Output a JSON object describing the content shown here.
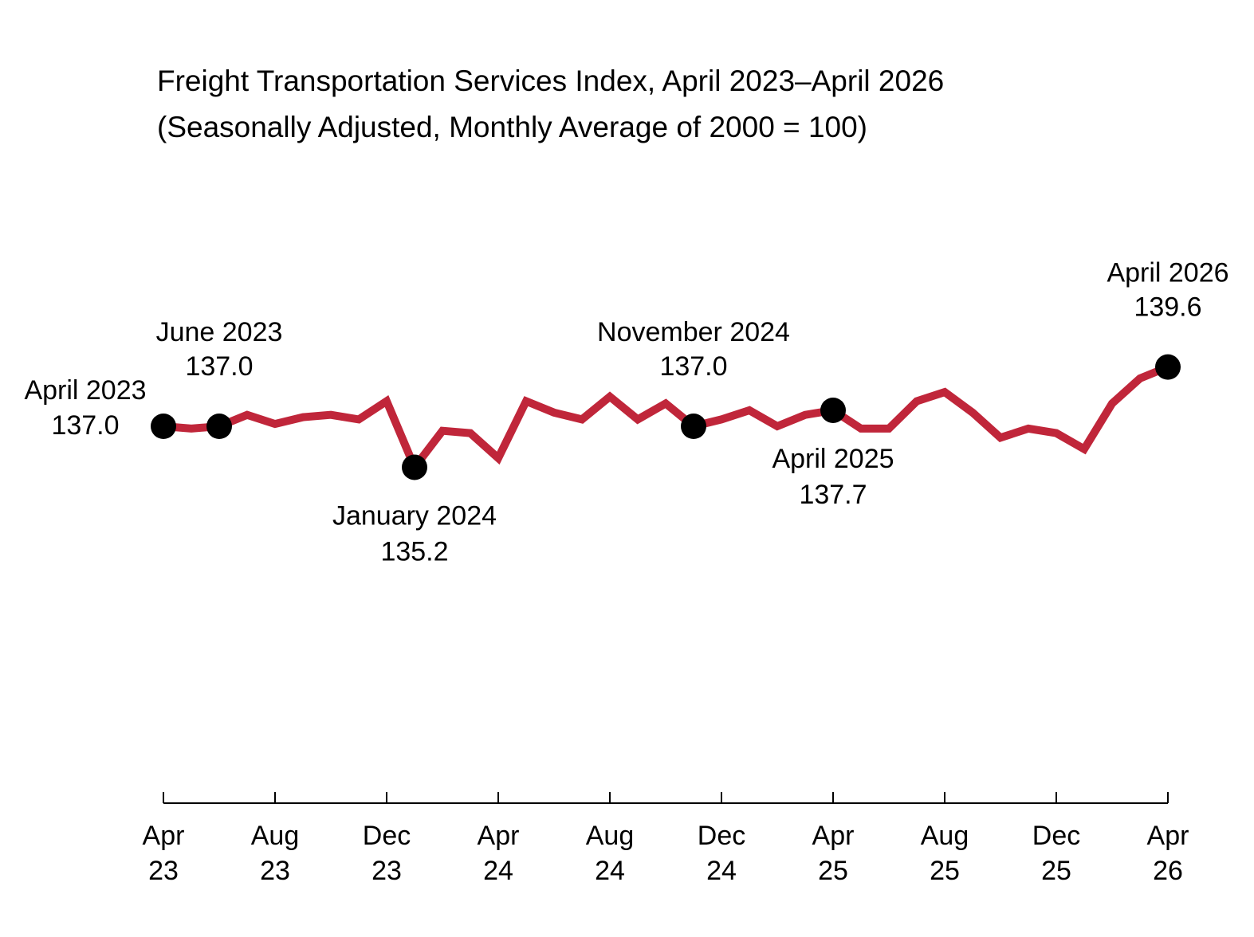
{
  "chart_data": {
    "type": "line",
    "title": "Freight Transportation Services Index, April 2023–April 2026",
    "subtitle": "(Seasonally Adjusted, Monthly Average of 2000 = 100)",
    "xlabel": "",
    "ylabel": "",
    "ylim": [
      132.0,
      140.0
    ],
    "grid": false,
    "legend": "none",
    "line_color": "#C0263A",
    "marker_color": "#000000",
    "x": [
      "2023-04",
      "2023-05",
      "2023-06",
      "2023-07",
      "2023-08",
      "2023-09",
      "2023-10",
      "2023-11",
      "2023-12",
      "2024-01",
      "2024-02",
      "2024-03",
      "2024-04",
      "2024-05",
      "2024-06",
      "2024-07",
      "2024-08",
      "2024-09",
      "2024-10",
      "2024-11",
      "2024-12",
      "2025-01",
      "2025-02",
      "2025-03",
      "2025-04",
      "2025-05",
      "2025-06",
      "2025-07",
      "2025-08",
      "2025-09",
      "2025-10",
      "2025-11",
      "2025-12",
      "2026-01",
      "2026-02",
      "2026-03",
      "2026-04"
    ],
    "series": [
      {
        "values": [
          137.0,
          136.9,
          137.0,
          137.5,
          137.1,
          137.4,
          137.5,
          137.3,
          138.1,
          135.2,
          136.8,
          136.7,
          135.6,
          138.1,
          137.6,
          137.3,
          138.3,
          137.3,
          138.0,
          137.0,
          137.3,
          137.7,
          137.0,
          137.5,
          137.7,
          136.9,
          136.9,
          138.1,
          138.5,
          137.6,
          136.5,
          136.9,
          136.7,
          136.0,
          138.0,
          139.1,
          139.6
        ]
      }
    ],
    "annotations": [
      {
        "index": 0,
        "name": "April 2023",
        "value": "137.0",
        "placement": "left"
      },
      {
        "index": 2,
        "name": "June 2023",
        "value": "137.0",
        "placement": "above"
      },
      {
        "index": 9,
        "name": "January 2024",
        "value": "135.2",
        "placement": "below"
      },
      {
        "index": 19,
        "name": "November 2024",
        "value": "137.0",
        "placement": "above"
      },
      {
        "index": 24,
        "name": "April 2025",
        "value": "137.7",
        "placement": "below"
      },
      {
        "index": 36,
        "name": "April 2026",
        "value": "139.6",
        "placement": "above"
      }
    ],
    "x_ticks": [
      {
        "index": 0,
        "month": "Apr",
        "year": "23"
      },
      {
        "index": 4,
        "month": "Aug",
        "year": "23"
      },
      {
        "index": 8,
        "month": "Dec",
        "year": "23"
      },
      {
        "index": 12,
        "month": "Apr",
        "year": "24"
      },
      {
        "index": 16,
        "month": "Aug",
        "year": "24"
      },
      {
        "index": 20,
        "month": "Dec",
        "year": "24"
      },
      {
        "index": 24,
        "month": "Apr",
        "year": "25"
      },
      {
        "index": 28,
        "month": "Aug",
        "year": "25"
      },
      {
        "index": 32,
        "month": "Dec",
        "year": "25"
      },
      {
        "index": 36,
        "month": "Apr",
        "year": "26"
      }
    ]
  }
}
